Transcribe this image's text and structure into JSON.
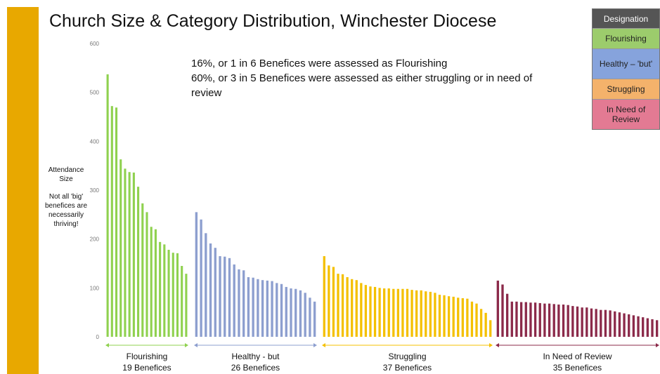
{
  "chart_data": {
    "type": "grouped-bar",
    "title": "Church Size & Category Distribution, Winchester Diocese",
    "annotations": [
      "16%, or 1 in 6 Benefices were assessed as Flourishing",
      "60%, or 3 in 5 Benefices were assessed as either struggling or in need of review"
    ],
    "y_label": "Attendance Size",
    "side_note": "Not all 'big' benefices are necessarily thriving!",
    "ylim": [
      0,
      600
    ],
    "yticks": [
      0,
      100,
      200,
      300,
      400,
      500,
      600
    ],
    "grid": false,
    "series": [
      {
        "name": "Flourishing",
        "count_label": "19 Benefices",
        "color": "#8fd14f",
        "values": [
          537,
          472,
          469,
          363,
          344,
          337,
          336,
          307,
          273,
          255,
          225,
          220,
          194,
          189,
          178,
          172,
          171,
          145,
          129
        ]
      },
      {
        "name": "Healthy - but",
        "count_label": "26 Benefices",
        "color": "#8d9fcf",
        "values": [
          255,
          240,
          212,
          191,
          182,
          165,
          164,
          161,
          148,
          138,
          136,
          122,
          121,
          118,
          116,
          115,
          114,
          110,
          108,
          102,
          99,
          98,
          95,
          90,
          80,
          72
        ]
      },
      {
        "name": "Struggling",
        "count_label": "37 Benefices",
        "color": "#f4c000",
        "values": [
          165,
          146,
          143,
          129,
          128,
          122,
          118,
          116,
          110,
          106,
          103,
          102,
          100,
          99,
          99,
          98,
          98,
          98,
          98,
          96,
          95,
          95,
          93,
          92,
          90,
          86,
          85,
          83,
          82,
          80,
          79,
          78,
          72,
          68,
          57,
          49,
          34
        ]
      },
      {
        "name": "In Need of Review",
        "count_label": "35 Benefices",
        "color": "#8b2a4a",
        "values": [
          115,
          107,
          88,
          72,
          72,
          71,
          71,
          70,
          70,
          69,
          68,
          68,
          67,
          66,
          66,
          65,
          63,
          62,
          60,
          60,
          58,
          57,
          55,
          55,
          54,
          52,
          50,
          48,
          46,
          44,
          42,
          40,
          38,
          36,
          34
        ]
      }
    ],
    "legend": {
      "title": "Designation",
      "title_color": "#555555",
      "entries": [
        {
          "label": "Flourishing",
          "color": "#9ccc6c"
        },
        {
          "label": "Healthy – 'but'",
          "color": "#86a3dc"
        },
        {
          "label": "Struggling",
          "color": "#f4b26b"
        },
        {
          "label": "In Need of Review",
          "color": "#e37a93"
        }
      ]
    }
  }
}
